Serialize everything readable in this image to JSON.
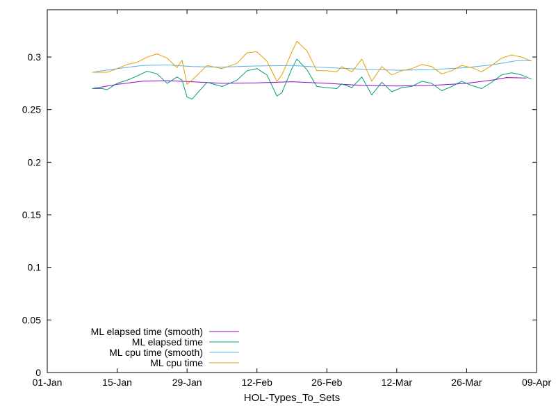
{
  "chart_data": {
    "type": "line",
    "xlabel": "HOL-Types_To_Sets",
    "ylabel": "",
    "x_ticks": [
      "01-Jan",
      "15-Jan",
      "29-Jan",
      "12-Feb",
      "26-Feb",
      "12-Mar",
      "26-Mar",
      "09-Apr"
    ],
    "y_ticks": [
      "0",
      "0.05",
      "0.1",
      "0.15",
      "0.2",
      "0.25",
      "0.3"
    ],
    "xlim": [
      "2023-01-01",
      "2023-04-09"
    ],
    "ylim": [
      0,
      0.345
    ],
    "grid": false,
    "legend_position": "bottom-left",
    "series": [
      {
        "name": "ML elapsed time (smooth)",
        "color": "#9400d3",
        "points": [
          [
            "2023-01-10",
            0.27
          ],
          [
            "2023-01-15",
            0.274
          ],
          [
            "2023-01-20",
            0.277
          ],
          [
            "2023-01-25",
            0.2775
          ],
          [
            "2023-01-30",
            0.2765
          ],
          [
            "2023-02-05",
            0.275
          ],
          [
            "2023-02-12",
            0.2755
          ],
          [
            "2023-02-19",
            0.2765
          ],
          [
            "2023-02-26",
            0.275
          ],
          [
            "2023-03-05",
            0.273
          ],
          [
            "2023-03-12",
            0.2725
          ],
          [
            "2023-03-19",
            0.273
          ],
          [
            "2023-03-26",
            0.275
          ],
          [
            "2023-03-31",
            0.278
          ],
          [
            "2023-04-03",
            0.2805
          ],
          [
            "2023-04-07",
            0.28
          ]
        ]
      },
      {
        "name": "ML elapsed time",
        "color": "#009e73",
        "points": [
          [
            "2023-01-10",
            0.27
          ],
          [
            "2023-01-12",
            0.27
          ],
          [
            "2023-01-13",
            0.269
          ],
          [
            "2023-01-15",
            0.275
          ],
          [
            "2023-01-17",
            0.278
          ],
          [
            "2023-01-19",
            0.282
          ],
          [
            "2023-01-21",
            0.2865
          ],
          [
            "2023-01-23",
            0.284
          ],
          [
            "2023-01-25",
            0.275
          ],
          [
            "2023-01-27",
            0.281
          ],
          [
            "2023-01-28",
            0.278
          ],
          [
            "2023-01-29",
            0.262
          ],
          [
            "2023-01-30",
            0.26
          ],
          [
            "2023-02-02",
            0.276
          ],
          [
            "2023-02-05",
            0.272
          ],
          [
            "2023-02-08",
            0.278
          ],
          [
            "2023-02-10",
            0.287
          ],
          [
            "2023-02-12",
            0.289
          ],
          [
            "2023-02-14",
            0.283
          ],
          [
            "2023-02-16",
            0.263
          ],
          [
            "2023-02-17",
            0.266
          ],
          [
            "2023-02-19",
            0.289
          ],
          [
            "2023-02-20",
            0.298
          ],
          [
            "2023-02-22",
            0.288
          ],
          [
            "2023-02-24",
            0.272
          ],
          [
            "2023-02-26",
            0.271
          ],
          [
            "2023-02-28",
            0.27
          ],
          [
            "2023-03-01",
            0.2745
          ],
          [
            "2023-03-03",
            0.271
          ],
          [
            "2023-03-05",
            0.281
          ],
          [
            "2023-03-07",
            0.264
          ],
          [
            "2023-03-09",
            0.276
          ],
          [
            "2023-03-11",
            0.267
          ],
          [
            "2023-03-13",
            0.271
          ],
          [
            "2023-03-15",
            0.272
          ],
          [
            "2023-03-17",
            0.277
          ],
          [
            "2023-03-19",
            0.275
          ],
          [
            "2023-03-21",
            0.268
          ],
          [
            "2023-03-23",
            0.272
          ],
          [
            "2023-03-25",
            0.277
          ],
          [
            "2023-03-27",
            0.273
          ],
          [
            "2023-03-29",
            0.27
          ],
          [
            "2023-03-31",
            0.276
          ],
          [
            "2023-04-02",
            0.283
          ],
          [
            "2023-04-04",
            0.285
          ],
          [
            "2023-04-06",
            0.283
          ],
          [
            "2023-04-08",
            0.279
          ]
        ]
      },
      {
        "name": "ML cpu time (smooth)",
        "color": "#56b4e9",
        "points": [
          [
            "2023-01-10",
            0.2855
          ],
          [
            "2023-01-15",
            0.289
          ],
          [
            "2023-01-20",
            0.292
          ],
          [
            "2023-01-25",
            0.2925
          ],
          [
            "2023-01-30",
            0.291
          ],
          [
            "2023-02-05",
            0.2905
          ],
          [
            "2023-02-12",
            0.2915
          ],
          [
            "2023-02-19",
            0.292
          ],
          [
            "2023-02-26",
            0.29
          ],
          [
            "2023-03-05",
            0.2885
          ],
          [
            "2023-03-12",
            0.2875
          ],
          [
            "2023-03-19",
            0.288
          ],
          [
            "2023-03-26",
            0.29
          ],
          [
            "2023-03-31",
            0.2925
          ],
          [
            "2023-04-05",
            0.2965
          ],
          [
            "2023-04-08",
            0.2965
          ]
        ]
      },
      {
        "name": "ML cpu time",
        "color": "#e69f00",
        "points": [
          [
            "2023-01-10",
            0.2855
          ],
          [
            "2023-01-13",
            0.2855
          ],
          [
            "2023-01-15",
            0.289
          ],
          [
            "2023-01-17",
            0.293
          ],
          [
            "2023-01-19",
            0.295
          ],
          [
            "2023-01-21",
            0.3
          ],
          [
            "2023-01-23",
            0.303
          ],
          [
            "2023-01-25",
            0.299
          ],
          [
            "2023-01-27",
            0.29
          ],
          [
            "2023-01-28",
            0.297
          ],
          [
            "2023-01-29",
            0.274
          ],
          [
            "2023-01-30",
            0.278
          ],
          [
            "2023-02-02",
            0.292
          ],
          [
            "2023-02-05",
            0.289
          ],
          [
            "2023-02-08",
            0.294
          ],
          [
            "2023-02-10",
            0.304
          ],
          [
            "2023-02-12",
            0.305
          ],
          [
            "2023-02-14",
            0.296
          ],
          [
            "2023-02-16",
            0.277
          ],
          [
            "2023-02-17",
            0.283
          ],
          [
            "2023-02-19",
            0.305
          ],
          [
            "2023-02-20",
            0.315
          ],
          [
            "2023-02-22",
            0.306
          ],
          [
            "2023-02-24",
            0.287
          ],
          [
            "2023-02-26",
            0.287
          ],
          [
            "2023-02-28",
            0.286
          ],
          [
            "2023-03-01",
            0.291
          ],
          [
            "2023-03-03",
            0.286
          ],
          [
            "2023-03-05",
            0.298
          ],
          [
            "2023-03-07",
            0.277
          ],
          [
            "2023-03-09",
            0.291
          ],
          [
            "2023-03-11",
            0.283
          ],
          [
            "2023-03-13",
            0.287
          ],
          [
            "2023-03-15",
            0.289
          ],
          [
            "2023-03-17",
            0.293
          ],
          [
            "2023-03-19",
            0.291
          ],
          [
            "2023-03-21",
            0.284
          ],
          [
            "2023-03-23",
            0.287
          ],
          [
            "2023-03-25",
            0.292
          ],
          [
            "2023-03-27",
            0.29
          ],
          [
            "2023-03-29",
            0.286
          ],
          [
            "2023-03-31",
            0.292
          ],
          [
            "2023-04-02",
            0.299
          ],
          [
            "2023-04-04",
            0.302
          ],
          [
            "2023-04-06",
            0.3
          ],
          [
            "2023-04-08",
            0.296
          ]
        ]
      }
    ]
  }
}
